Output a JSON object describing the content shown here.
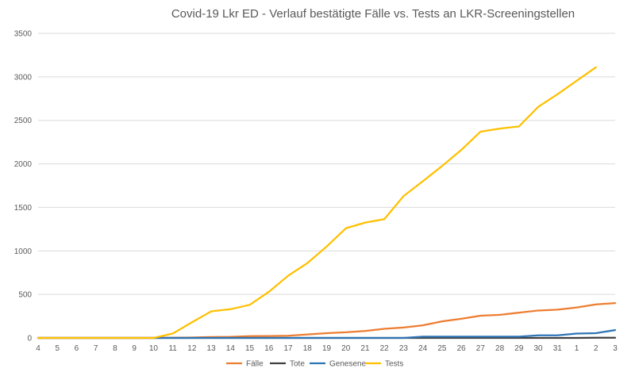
{
  "chart_data": {
    "type": "line",
    "title": "Covid-19 Lkr ED - Verlauf bestätigte Fälle vs. Tests an LKR-Screeningstellen",
    "xlabel": "",
    "ylabel": "",
    "ylim": [
      0,
      3500
    ],
    "yticks": [
      0,
      500,
      1000,
      1500,
      2000,
      2500,
      3000,
      3500
    ],
    "grid": true,
    "legend": "bottom",
    "categories": [
      "4",
      "5",
      "6",
      "7",
      "8",
      "9",
      "10",
      "11",
      "12",
      "13",
      "14",
      "15",
      "16",
      "17",
      "18",
      "19",
      "20",
      "21",
      "22",
      "23",
      "24",
      "25",
      "26",
      "27",
      "28",
      "29",
      "30",
      "31",
      "1",
      "2",
      "3"
    ],
    "series": [
      {
        "name": "Fälle",
        "color": "#ed7d31",
        "values": [
          0,
          0,
          0,
          0,
          0,
          0,
          0,
          2,
          5,
          10,
          12,
          20,
          22,
          25,
          40,
          55,
          65,
          80,
          105,
          120,
          145,
          190,
          220,
          255,
          265,
          290,
          315,
          325,
          350,
          385,
          400
        ]
      },
      {
        "name": "Tote",
        "color": "#404040",
        "values": [
          0,
          0,
          0,
          0,
          0,
          0,
          0,
          0,
          0,
          0,
          0,
          0,
          0,
          0,
          0,
          0,
          0,
          0,
          0,
          0,
          0,
          0,
          0,
          0,
          0,
          0,
          0,
          0,
          0,
          2,
          2
        ]
      },
      {
        "name": "Genesene",
        "color": "#2e75b6",
        "values": [
          0,
          0,
          0,
          0,
          0,
          0,
          0,
          0,
          0,
          0,
          0,
          0,
          0,
          0,
          0,
          0,
          0,
          0,
          0,
          0,
          15,
          15,
          15,
          15,
          15,
          15,
          30,
          30,
          50,
          55,
          90
        ]
      },
      {
        "name": "Tests",
        "color": "#ffc000",
        "values": [
          0,
          0,
          0,
          0,
          0,
          0,
          0,
          50,
          180,
          305,
          330,
          380,
          530,
          715,
          860,
          1050,
          1260,
          1325,
          1365,
          1630,
          1800,
          1975,
          2160,
          2370,
          2405,
          2430,
          2655,
          2800,
          2955,
          3110,
          null
        ]
      }
    ]
  }
}
